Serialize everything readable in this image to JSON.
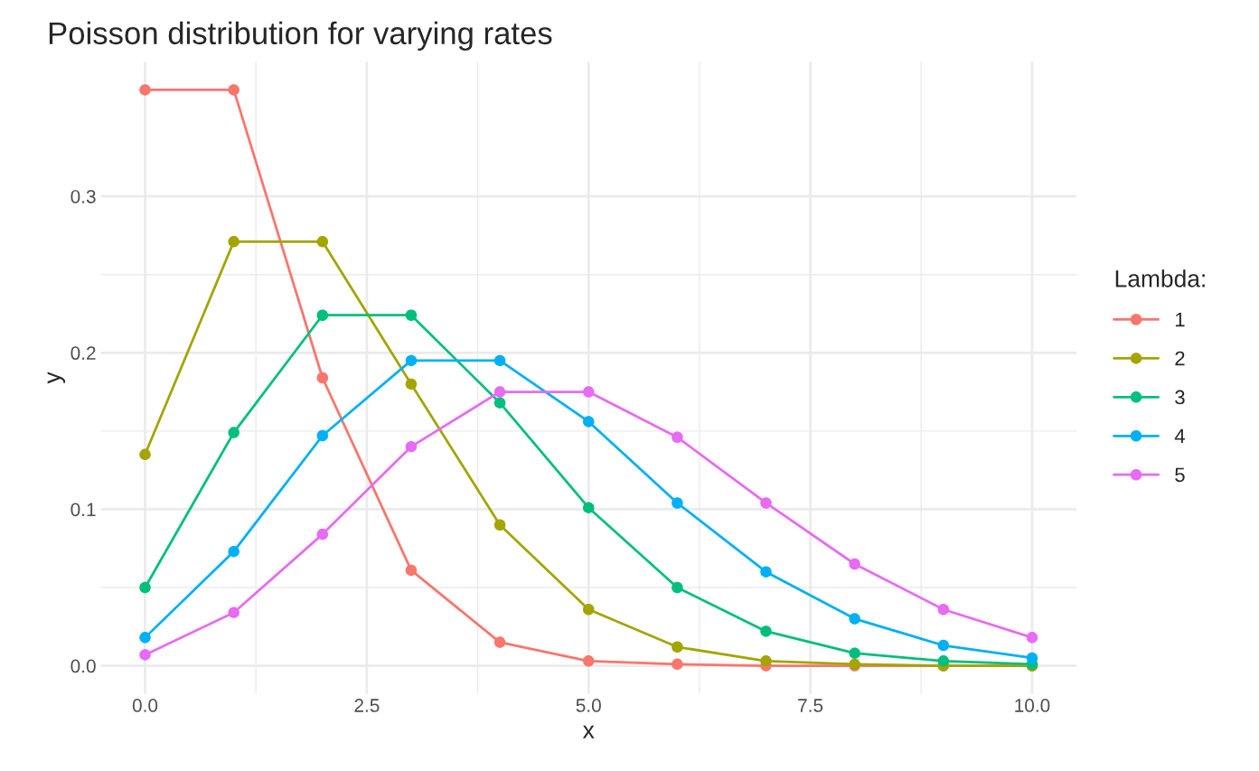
{
  "chart_data": {
    "type": "line",
    "title": "Poisson distribution for varying rates",
    "xlabel": "x",
    "ylabel": "y",
    "legend_title": "Lambda:",
    "x": [
      0,
      1,
      2,
      3,
      4,
      5,
      6,
      7,
      8,
      9,
      10
    ],
    "series": [
      {
        "name": "1",
        "color": "#f8766d",
        "values": [
          0.368,
          0.368,
          0.184,
          0.061,
          0.015,
          0.003,
          0.001,
          0.0,
          0.0,
          0.0,
          0.0
        ]
      },
      {
        "name": "2",
        "color": "#a3a500",
        "values": [
          0.135,
          0.271,
          0.271,
          0.18,
          0.09,
          0.036,
          0.012,
          0.003,
          0.001,
          0.0,
          0.0
        ]
      },
      {
        "name": "3",
        "color": "#00bf7d",
        "values": [
          0.05,
          0.149,
          0.224,
          0.224,
          0.168,
          0.101,
          0.05,
          0.022,
          0.008,
          0.003,
          0.001
        ]
      },
      {
        "name": "4",
        "color": "#00b0f6",
        "values": [
          0.018,
          0.073,
          0.147,
          0.195,
          0.195,
          0.156,
          0.104,
          0.06,
          0.03,
          0.013,
          0.005
        ]
      },
      {
        "name": "5",
        "color": "#e76bf3",
        "values": [
          0.007,
          0.034,
          0.084,
          0.14,
          0.175,
          0.175,
          0.146,
          0.104,
          0.065,
          0.036,
          0.018
        ]
      }
    ],
    "xlim": [
      -0.5,
      10.5
    ],
    "ylim": [
      -0.018,
      0.386
    ],
    "xticks": [
      {
        "value": 0,
        "label": "0.0"
      },
      {
        "value": 2.5,
        "label": "2.5"
      },
      {
        "value": 5,
        "label": "5.0"
      },
      {
        "value": 7.5,
        "label": "7.5"
      },
      {
        "value": 10,
        "label": "10.0"
      }
    ],
    "yticks": [
      {
        "value": 0,
        "label": "0.0"
      },
      {
        "value": 0.1,
        "label": "0.1"
      },
      {
        "value": 0.2,
        "label": "0.2"
      },
      {
        "value": 0.3,
        "label": "0.3"
      }
    ],
    "grid": true,
    "legend": "right",
    "marker": "circle",
    "line_style": "solid"
  }
}
